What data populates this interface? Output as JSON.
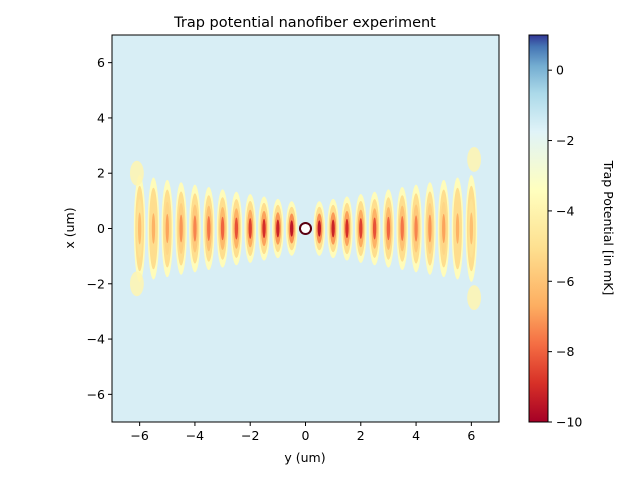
{
  "chart_data": {
    "type": "heatmap",
    "title": "Trap potential nanofiber experiment",
    "xlabel": "y (um)",
    "ylabel": "x (um)",
    "xlim": [
      -7,
      7
    ],
    "ylim": [
      -7,
      7
    ],
    "xticks": [
      -6,
      -4,
      -2,
      0,
      2,
      4,
      6
    ],
    "yticks": [
      -6,
      -4,
      -2,
      0,
      2,
      4,
      6
    ],
    "colorbar": {
      "label": "Trap Potential [in mK]",
      "range": [
        -10,
        1
      ],
      "ticks": [
        0,
        -2,
        -4,
        -6,
        -8,
        -10
      ],
      "colormap": "RdYlBu",
      "background_value": 0.3
    },
    "pattern": {
      "description_values": {
        "fringe_count_each_side": 12,
        "fringe_spacing_um": 0.5,
        "extent_y_um": [
          -6.4,
          6.4
        ],
        "central_depth_mK": -9.5,
        "edge_depth_mK": -3.5,
        "fiber_radius_um": 0.2
      }
    },
    "grid": false,
    "legend": "none"
  }
}
